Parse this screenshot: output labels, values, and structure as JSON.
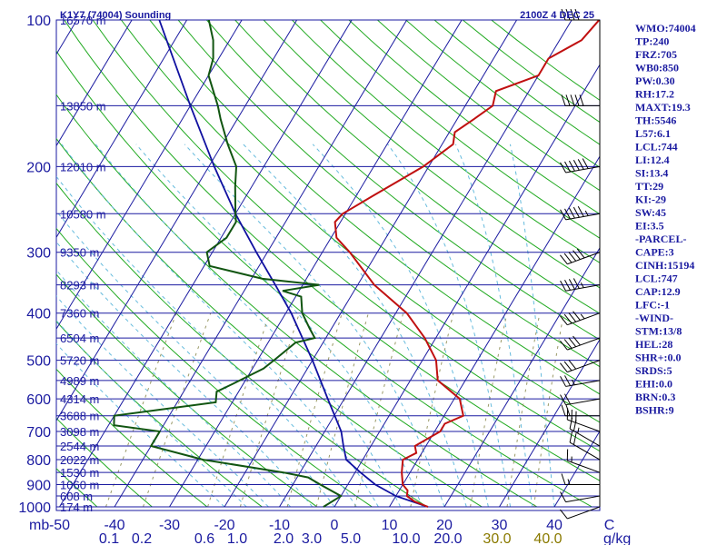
{
  "station_title": "K1Y7 (74004) Sounding",
  "time_title": "2100Z  4 DEC 25",
  "colors": {
    "isobar": "#1a1aa0",
    "isotherm": "#1a1aa0",
    "dry_adiabat": "#22aa22",
    "moist_adiabat": "#66bbdd",
    "mixing_ratio": "#999966",
    "temperature": "#c01010",
    "dewpoint": "#115511",
    "parcel": "#1010a0",
    "wind": "#000000",
    "text": "#1a1aa0"
  },
  "indices": [
    "WMO:74004",
    "TP:240",
    "FRZ:705",
    "WB0:850",
    "PW:0.30",
    "RH:17.2",
    "MAXT:19.3",
    "TH:5546",
    "L57:6.1",
    "LCL:744",
    "LI:12.4",
    "SI:13.4",
    "TT:29",
    "KI:-29",
    "SW:45",
    "EI:3.5",
    "-PARCEL-",
    "CAPE:3",
    "CINH:15194",
    "LCL:747",
    "CAP:12.9",
    "LFC:-1",
    "-WIND-",
    "STM:13/8",
    "HEL:28",
    "SHR+:0.0",
    "SRDS:5",
    "EHI:0.0",
    "BRN:0.3",
    "BSHR:9"
  ],
  "chart_data": {
    "type": "skew-t",
    "pressure_unit": "mb",
    "mixing_ratio_unit": "g/kg",
    "pressure_levels": [
      {
        "p": 100,
        "label": "100",
        "height": "16570 m"
      },
      {
        "p": 150,
        "label": "",
        "height": "13850 m"
      },
      {
        "p": 200,
        "label": "200",
        "height": "12010 m"
      },
      {
        "p": 250,
        "label": "",
        "height": "10580 m"
      },
      {
        "p": 300,
        "label": "300",
        "height": "9350 m"
      },
      {
        "p": 350,
        "label": "",
        "height": "8293 m"
      },
      {
        "p": 400,
        "label": "400",
        "height": "7360 m"
      },
      {
        "p": 450,
        "label": "",
        "height": "6504 m"
      },
      {
        "p": 500,
        "label": "500",
        "height": "5720 m"
      },
      {
        "p": 550,
        "label": "",
        "height": "4989 m"
      },
      {
        "p": 600,
        "label": "600",
        "height": "4314 m"
      },
      {
        "p": 650,
        "label": "",
        "height": "3688 m"
      },
      {
        "p": 700,
        "label": "700",
        "height": "3098 m"
      },
      {
        "p": 750,
        "label": "",
        "height": "2544 m"
      },
      {
        "p": 800,
        "label": "800",
        "height": "2022 m"
      },
      {
        "p": 850,
        "label": "",
        "height": "1530 m"
      },
      {
        "p": 900,
        "label": "900",
        "height": "1060 m"
      },
      {
        "p": 950,
        "label": "",
        "height": "608 m"
      },
      {
        "p": 1000,
        "label": "1000",
        "height": "174 m"
      }
    ],
    "temperature_ticks": [
      {
        "t": -50,
        "label": "-50"
      },
      {
        "t": -40,
        "label": "-40"
      },
      {
        "t": -30,
        "label": "-30"
      },
      {
        "t": -20,
        "label": "-20"
      },
      {
        "t": -10,
        "label": "-10"
      },
      {
        "t": 0,
        "label": "0"
      },
      {
        "t": 10,
        "label": "10"
      },
      {
        "t": 20,
        "label": "20"
      },
      {
        "t": 30,
        "label": "30"
      },
      {
        "t": 40,
        "label": "40"
      },
      {
        "t": 50,
        "label": "C"
      }
    ],
    "mixing_ratio_ticks": [
      {
        "label": "0.1",
        "hi": false
      },
      {
        "label": "0.2",
        "hi": false
      },
      {
        "label": "0.6",
        "hi": false
      },
      {
        "label": "1.0",
        "hi": false
      },
      {
        "label": "2.0",
        "hi": false
      },
      {
        "label": "3.0",
        "hi": false
      },
      {
        "label": "5.0",
        "hi": false
      },
      {
        "label": "10.0",
        "hi": false
      },
      {
        "label": "20.0",
        "hi": false
      },
      {
        "label": "30.0",
        "hi": true
      },
      {
        "label": "40.0",
        "hi": true
      }
    ],
    "temperature_profile": [
      [
        1000,
        17
      ],
      [
        975,
        14
      ],
      [
        950,
        12
      ],
      [
        925,
        11.5
      ],
      [
        900,
        10
      ],
      [
        850,
        8.5
      ],
      [
        800,
        7.3
      ],
      [
        775,
        9
      ],
      [
        750,
        8
      ],
      [
        700,
        11
      ],
      [
        675,
        11
      ],
      [
        650,
        13.5
      ],
      [
        600,
        11
      ],
      [
        550,
        5
      ],
      [
        500,
        2.5
      ],
      [
        450,
        -2
      ],
      [
        400,
        -8
      ],
      [
        350,
        -17
      ],
      [
        300,
        -25
      ],
      [
        280,
        -29
      ],
      [
        260,
        -31
      ],
      [
        250,
        -30.5
      ],
      [
        230,
        -27
      ],
      [
        200,
        -21
      ],
      [
        180,
        -18
      ],
      [
        170,
        -19
      ],
      [
        160,
        -17
      ],
      [
        150,
        -15
      ],
      [
        140,
        -16
      ],
      [
        130,
        -10
      ],
      [
        120,
        -10
      ],
      [
        110,
        -6
      ],
      [
        100,
        -5
      ]
    ],
    "dewpoint_profile": [
      [
        1000,
        -2
      ],
      [
        950,
        0
      ],
      [
        900,
        -5
      ],
      [
        870,
        -8
      ],
      [
        850,
        -13
      ],
      [
        800,
        -29
      ],
      [
        750,
        -40
      ],
      [
        700,
        -40
      ],
      [
        680,
        -49
      ],
      [
        650,
        -50
      ],
      [
        610,
        -33
      ],
      [
        580,
        -34
      ],
      [
        560,
        -32
      ],
      [
        520,
        -28
      ],
      [
        500,
        -27
      ],
      [
        460,
        -25
      ],
      [
        450,
        -22
      ],
      [
        430,
        -24
      ],
      [
        400,
        -27
      ],
      [
        370,
        -29
      ],
      [
        360,
        -33
      ],
      [
        350,
        -27
      ],
      [
        340,
        -38
      ],
      [
        320,
        -49
      ],
      [
        300,
        -51
      ],
      [
        280,
        -49
      ],
      [
        260,
        -49
      ],
      [
        250,
        -50
      ],
      [
        220,
        -53
      ],
      [
        200,
        -55
      ],
      [
        180,
        -59
      ],
      [
        160,
        -63
      ],
      [
        150,
        -65
      ],
      [
        130,
        -70
      ],
      [
        120,
        -71
      ],
      [
        110,
        -73
      ],
      [
        100,
        -76
      ]
    ],
    "parcel_profile": [
      [
        1000,
        17
      ],
      [
        950,
        10
      ],
      [
        900,
        5
      ],
      [
        850,
        1
      ],
      [
        800,
        -3
      ],
      [
        750,
        -5
      ],
      [
        700,
        -7
      ],
      [
        600,
        -13
      ],
      [
        500,
        -20
      ],
      [
        400,
        -29
      ],
      [
        350,
        -35
      ],
      [
        300,
        -42
      ],
      [
        250,
        -50
      ],
      [
        200,
        -59
      ],
      [
        150,
        -70
      ],
      [
        100,
        -85
      ]
    ],
    "wind_barbs": [
      {
        "p": 1000,
        "dir": 250,
        "spd": 10
      },
      {
        "p": 950,
        "dir": 260,
        "spd": 10
      },
      {
        "p": 900,
        "dir": 270,
        "spd": 15
      },
      {
        "p": 850,
        "dir": 290,
        "spd": 15
      },
      {
        "p": 800,
        "dir": 300,
        "spd": 20
      },
      {
        "p": 750,
        "dir": 300,
        "spd": 25
      },
      {
        "p": 700,
        "dir": 290,
        "spd": 30
      },
      {
        "p": 650,
        "dir": 270,
        "spd": 20
      },
      {
        "p": 600,
        "dir": 260,
        "spd": 20
      },
      {
        "p": 550,
        "dir": 260,
        "spd": 25
      },
      {
        "p": 500,
        "dir": 250,
        "spd": 30
      },
      {
        "p": 450,
        "dir": 250,
        "spd": 40
      },
      {
        "p": 400,
        "dir": 250,
        "spd": 45
      },
      {
        "p": 350,
        "dir": 260,
        "spd": 45
      },
      {
        "p": 300,
        "dir": 250,
        "spd": 50
      },
      {
        "p": 250,
        "dir": 260,
        "spd": 55
      },
      {
        "p": 200,
        "dir": 260,
        "spd": 60
      },
      {
        "p": 150,
        "dir": 270,
        "spd": 50
      },
      {
        "p": 100,
        "dir": 270,
        "spd": 40
      }
    ]
  }
}
